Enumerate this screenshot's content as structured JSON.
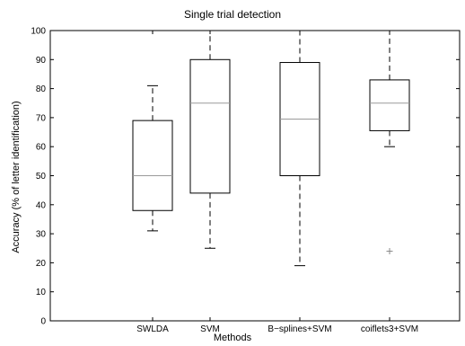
{
  "chart_data": {
    "type": "boxplot",
    "title": "Single trial detection",
    "xlabel": "Methods",
    "ylabel": "Accuracy (% of letter identification)",
    "ylim": [
      0,
      100
    ],
    "yticks": [
      0,
      10,
      20,
      30,
      40,
      50,
      60,
      70,
      80,
      90,
      100
    ],
    "grid": false,
    "categories": [
      "SWLDA",
      "SVM",
      "B−splines+SVM",
      "coiflets3+SVM"
    ],
    "boxes": [
      {
        "name": "SWLDA",
        "whisker_low": 31,
        "q1": 38,
        "median": 50,
        "q3": 69,
        "whisker_high": 81,
        "outliers": []
      },
      {
        "name": "SVM",
        "whisker_low": 25,
        "q1": 44,
        "median": 75,
        "q3": 90,
        "whisker_high": 100,
        "outliers": []
      },
      {
        "name": "B−splines+SVM",
        "whisker_low": 19,
        "q1": 50,
        "median": 69.5,
        "q3": 89,
        "whisker_high": 100,
        "outliers": []
      },
      {
        "name": "coiflets3+SVM",
        "whisker_low": 60,
        "q1": 65.5,
        "median": 75,
        "q3": 83,
        "whisker_high": 100,
        "outliers": [
          24
        ]
      }
    ],
    "colors": {
      "box": "#000000",
      "median": "#9a9a9a",
      "outlier": "#8a8a8a",
      "axis": "#000000"
    }
  }
}
